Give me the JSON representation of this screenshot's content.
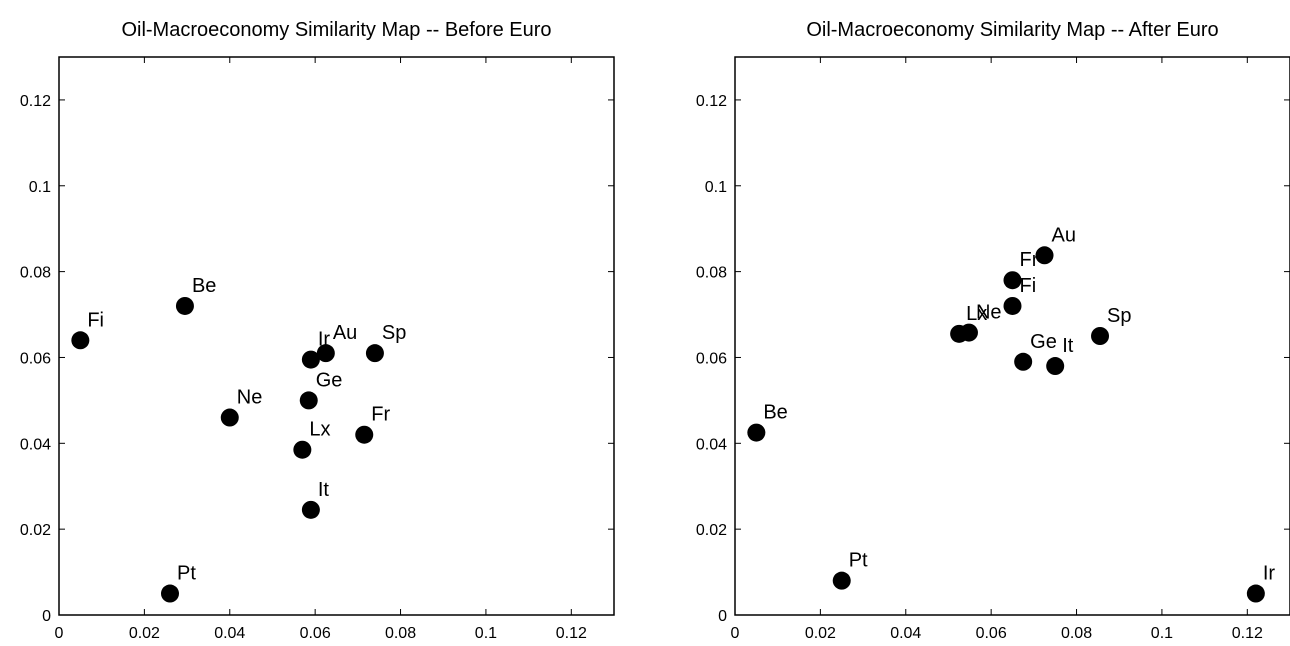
{
  "chart_data": [
    {
      "type": "scatter",
      "title": "Oil-Macroeconomy Similarity Map -- Before Euro",
      "xlabel": "",
      "ylabel": "",
      "xlim": [
        0,
        0.13
      ],
      "ylim": [
        0,
        0.13
      ],
      "xticks": [
        "0",
        "0.02",
        "0.04",
        "0.06",
        "0.08",
        "0.1",
        "0.12"
      ],
      "yticks": [
        "0",
        "0.02",
        "0.04",
        "0.06",
        "0.08",
        "0.1",
        "0.12"
      ],
      "grid": false,
      "points": [
        {
          "label": "Fi",
          "x": 0.005,
          "y": 0.064
        },
        {
          "label": "Be",
          "x": 0.0295,
          "y": 0.072
        },
        {
          "label": "Ne",
          "x": 0.04,
          "y": 0.046
        },
        {
          "label": "Ir",
          "x": 0.059,
          "y": 0.0595
        },
        {
          "label": "Au",
          "x": 0.0625,
          "y": 0.061
        },
        {
          "label": "Sp",
          "x": 0.074,
          "y": 0.061
        },
        {
          "label": "Ge",
          "x": 0.0585,
          "y": 0.05
        },
        {
          "label": "Lx",
          "x": 0.057,
          "y": 0.0385
        },
        {
          "label": "Fr",
          "x": 0.0715,
          "y": 0.042
        },
        {
          "label": "It",
          "x": 0.059,
          "y": 0.0245
        },
        {
          "label": "Pt",
          "x": 0.026,
          "y": 0.005
        }
      ]
    },
    {
      "type": "scatter",
      "title": "Oil-Macroeconomy Similarity Map -- After Euro",
      "xlabel": "",
      "ylabel": "",
      "xlim": [
        0,
        0.13
      ],
      "ylim": [
        0,
        0.13
      ],
      "xticks": [
        "0",
        "0.02",
        "0.04",
        "0.06",
        "0.08",
        "0.1",
        "0.12"
      ],
      "yticks": [
        "0",
        "0.02",
        "0.04",
        "0.06",
        "0.08",
        "0.1",
        "0.12"
      ],
      "grid": false,
      "points": [
        {
          "label": "Au",
          "x": 0.0725,
          "y": 0.0838
        },
        {
          "label": "Fr",
          "x": 0.065,
          "y": 0.078
        },
        {
          "label": "Fi",
          "x": 0.065,
          "y": 0.072
        },
        {
          "label": "Lx",
          "x": 0.0525,
          "y": 0.0655
        },
        {
          "label": "Ne",
          "x": 0.0548,
          "y": 0.0658
        },
        {
          "label": "Sp",
          "x": 0.0855,
          "y": 0.065
        },
        {
          "label": "Ge",
          "x": 0.0675,
          "y": 0.059
        },
        {
          "label": "It",
          "x": 0.075,
          "y": 0.058
        },
        {
          "label": "Be",
          "x": 0.005,
          "y": 0.0425
        },
        {
          "label": "Pt",
          "x": 0.025,
          "y": 0.008
        },
        {
          "label": "Ir",
          "x": 0.122,
          "y": 0.005
        }
      ]
    }
  ]
}
